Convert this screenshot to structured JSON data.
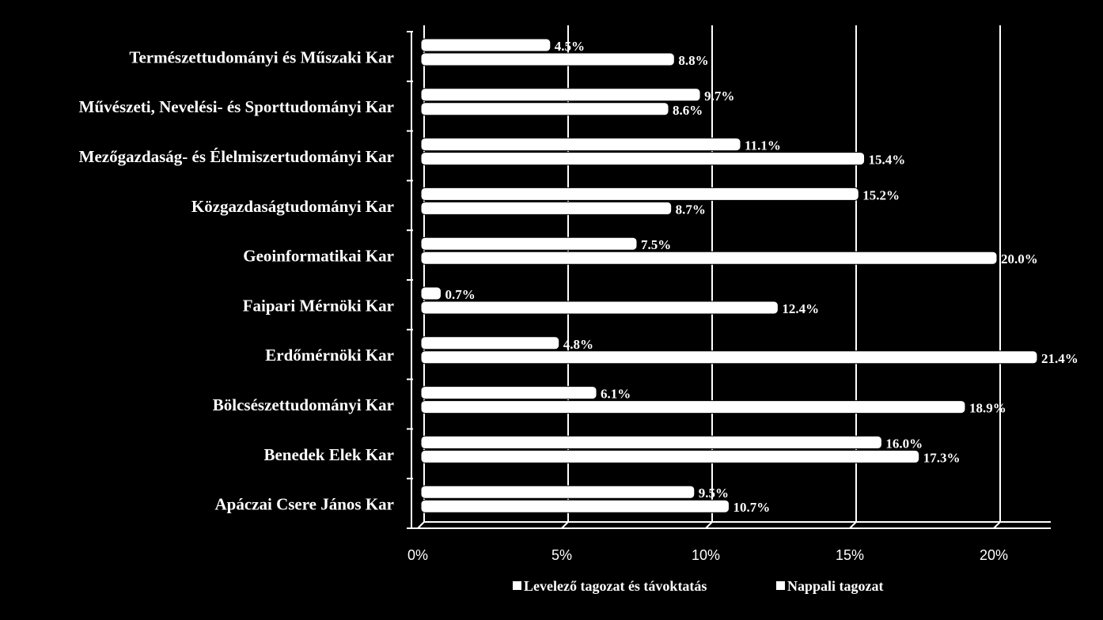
{
  "chart_data": {
    "type": "bar",
    "orientation": "horizontal",
    "categories": [
      "Természettudományi és Műszaki Kar",
      "Művészeti, Nevelési- és Sporttudományi Kar",
      "Mezőgazdaság- és Élelmiszertudományi Kar",
      "Közgazdaságtudományi Kar",
      "Geoinformatikai Kar",
      "Faipari Mérnöki Kar",
      "Erdőmérnöki Kar",
      "Bölcsészettudományi Kar",
      "Benedek Elek Kar",
      "Apáczai Csere János Kar"
    ],
    "series": [
      {
        "name": "Levelező tagozat és távoktatás",
        "values": [
          4.5,
          9.7,
          11.1,
          15.2,
          7.5,
          0.7,
          4.8,
          6.1,
          16.0,
          9.5
        ],
        "labels": [
          "4.5%",
          "9.7%",
          "11.1%",
          "15.2%",
          "7.5%",
          "0.7%",
          "4.8%",
          "6.1%",
          "16.0%",
          "9.5%"
        ]
      },
      {
        "name": "Nappali tagozat",
        "values": [
          8.8,
          8.6,
          15.4,
          8.7,
          20.0,
          12.4,
          21.4,
          18.9,
          17.3,
          10.7
        ],
        "labels": [
          "8.8%",
          "8.6%",
          "15.4%",
          "8.7%",
          "20.0%",
          "12.4%",
          "21.4%",
          "18.9%",
          "17.3%",
          "10.7%"
        ]
      }
    ],
    "x_ticks": [
      0,
      5,
      10,
      15,
      20
    ],
    "x_tick_labels": [
      "0%",
      "5%",
      "10%",
      "15%",
      "20%"
    ],
    "xlim": [
      0,
      22
    ],
    "grid": true,
    "legend_position": "bottom",
    "colors": {
      "background": "#000000",
      "bar_fill": "#ffffff",
      "bar_edge": "#000000",
      "text": "#ffffff",
      "axis": "#ffffff"
    }
  }
}
